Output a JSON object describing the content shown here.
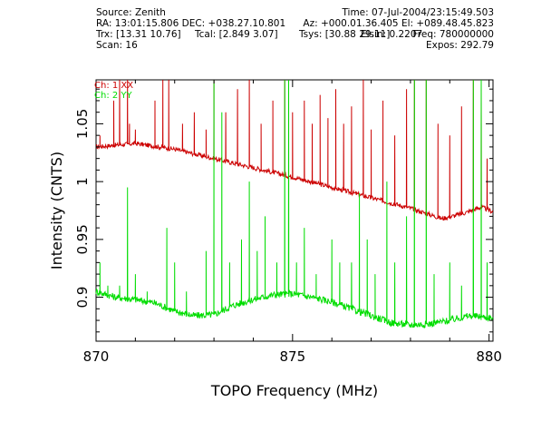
{
  "header": {
    "source": "Source: Zenith",
    "time": "Time: 07-Jul-2004/23:15:49.503",
    "radec": "RA: 13:01:15.806  DEC: +038.27.10.801",
    "azel": "Az: +000.01.36.405  El: +089.48.45.823",
    "trx": "Trx: [13.31 10.76]",
    "tcal": "Tcal: [2.849 3.07]",
    "tsys": "Tsys: [30.88 29.11]",
    "elstr": "Elsin: 0.2207",
    "freq": "Freq: 780000000",
    "scan": "Scan: 16",
    "expos": "Expos: 292.79"
  },
  "chart_data": {
    "type": "line",
    "title": "",
    "xlabel": "TOPO Frequency (MHz)",
    "ylabel": "Intensity (CNTS)",
    "xlim": [
      870,
      880.1
    ],
    "ylim": [
      0.862,
      1.088
    ],
    "xticks": [
      870,
      875,
      880
    ],
    "xtick_labels": [
      "870",
      "875",
      "880"
    ],
    "yticks": [
      0.9,
      0.95,
      1.0,
      1.05
    ],
    "ytick_labels": [
      "0.9",
      "0.95",
      "1",
      "1.05"
    ],
    "grid": false,
    "legend": "top-left",
    "series": [
      {
        "name": "Ch: 1 XX",
        "color": "#cc0000",
        "baseline": [
          [
            870,
            1.03
          ],
          [
            871,
            1.033
          ],
          [
            872,
            1.028
          ],
          [
            873,
            1.02
          ],
          [
            874,
            1.012
          ],
          [
            875,
            1.004
          ],
          [
            876,
            0.995
          ],
          [
            877,
            0.986
          ],
          [
            878,
            0.977
          ],
          [
            878.8,
            0.968
          ],
          [
            879.3,
            0.972
          ],
          [
            879.8,
            0.978
          ],
          [
            880.1,
            0.974
          ]
        ],
        "spikes": [
          [
            870.1,
            1.04
          ],
          [
            870.45,
            1.07
          ],
          [
            870.6,
            1.09
          ],
          [
            870.8,
            1.09
          ],
          [
            870.85,
            1.05
          ],
          [
            871.0,
            1.045
          ],
          [
            871.5,
            1.07
          ],
          [
            871.7,
            1.09
          ],
          [
            871.85,
            1.09
          ],
          [
            872.2,
            1.05
          ],
          [
            872.5,
            1.06
          ],
          [
            872.8,
            1.045
          ],
          [
            873.0,
            1.09
          ],
          [
            873.3,
            1.06
          ],
          [
            873.6,
            1.08
          ],
          [
            873.9,
            1.09
          ],
          [
            874.2,
            1.05
          ],
          [
            874.5,
            1.07
          ],
          [
            874.8,
            1.09
          ],
          [
            875.0,
            1.06
          ],
          [
            875.3,
            1.07
          ],
          [
            875.5,
            1.05
          ],
          [
            875.7,
            1.075
          ],
          [
            875.9,
            1.055
          ],
          [
            876.1,
            1.08
          ],
          [
            876.3,
            1.05
          ],
          [
            876.5,
            1.065
          ],
          [
            876.8,
            1.09
          ],
          [
            877.0,
            1.045
          ],
          [
            877.3,
            1.07
          ],
          [
            877.6,
            1.04
          ],
          [
            877.9,
            1.08
          ],
          [
            878.1,
            1.09
          ],
          [
            878.4,
            1.09
          ],
          [
            878.7,
            1.05
          ],
          [
            879.0,
            1.04
          ],
          [
            879.3,
            1.065
          ],
          [
            879.6,
            1.09
          ],
          [
            879.8,
            1.09
          ],
          [
            879.95,
            1.02
          ]
        ]
      },
      {
        "name": "Ch: 2 YY",
        "color": "#00dd00",
        "baseline": [
          [
            870,
            0.905
          ],
          [
            870.5,
            0.9
          ],
          [
            871,
            0.898
          ],
          [
            871.5,
            0.895
          ],
          [
            872,
            0.888
          ],
          [
            872.5,
            0.884
          ],
          [
            873,
            0.885
          ],
          [
            873.5,
            0.893
          ],
          [
            874,
            0.898
          ],
          [
            874.5,
            0.902
          ],
          [
            875,
            0.903
          ],
          [
            875.5,
            0.9
          ],
          [
            876,
            0.896
          ],
          [
            876.5,
            0.89
          ],
          [
            877,
            0.884
          ],
          [
            877.5,
            0.878
          ],
          [
            878,
            0.876
          ],
          [
            878.5,
            0.877
          ],
          [
            879,
            0.88
          ],
          [
            879.5,
            0.884
          ],
          [
            880.1,
            0.882
          ]
        ],
        "spikes": [
          [
            870.1,
            0.93
          ],
          [
            870.3,
            0.91
          ],
          [
            870.6,
            0.91
          ],
          [
            870.8,
            0.995
          ],
          [
            871.0,
            0.92
          ],
          [
            871.3,
            0.905
          ],
          [
            871.8,
            0.96
          ],
          [
            872.0,
            0.93
          ],
          [
            872.3,
            0.905
          ],
          [
            872.8,
            0.94
          ],
          [
            873.0,
            1.088
          ],
          [
            873.2,
            1.06
          ],
          [
            873.4,
            0.93
          ],
          [
            873.7,
            0.95
          ],
          [
            873.9,
            1.0
          ],
          [
            874.1,
            0.94
          ],
          [
            874.3,
            0.97
          ],
          [
            874.6,
            0.93
          ],
          [
            874.8,
            1.088
          ],
          [
            874.9,
            1.088
          ],
          [
            875.1,
            0.93
          ],
          [
            875.3,
            0.96
          ],
          [
            875.6,
            0.92
          ],
          [
            876.0,
            0.95
          ],
          [
            876.2,
            0.93
          ],
          [
            876.5,
            0.93
          ],
          [
            876.7,
            0.99
          ],
          [
            876.9,
            0.95
          ],
          [
            877.1,
            0.92
          ],
          [
            877.4,
            1.0
          ],
          [
            877.6,
            0.93
          ],
          [
            877.9,
            0.97
          ],
          [
            878.1,
            1.088
          ],
          [
            878.4,
            1.088
          ],
          [
            878.6,
            0.92
          ],
          [
            879.0,
            0.93
          ],
          [
            879.3,
            0.91
          ],
          [
            879.6,
            1.088
          ],
          [
            879.8,
            1.088
          ],
          [
            879.95,
            0.93
          ]
        ]
      }
    ]
  }
}
